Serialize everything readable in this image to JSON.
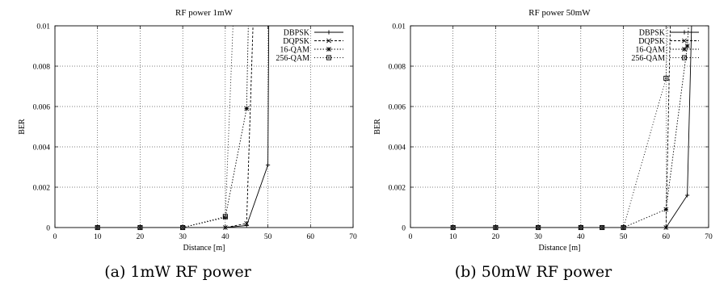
{
  "chart_data": [
    {
      "type": "line",
      "title": "RF power 1mW",
      "xlabel": "Distance [m]",
      "ylabel": "BER",
      "xlim": [
        0,
        70
      ],
      "ylim": [
        0,
        0.01
      ],
      "xticks": [
        "0",
        "10",
        "20",
        "30",
        "40",
        "50",
        "60",
        "70"
      ],
      "yticks": [
        "0",
        "0.002",
        "0.004",
        "0.006",
        "0.008",
        "0.01"
      ],
      "grid": true,
      "legend_position": "top-right",
      "caption": "(a) 1mW RF power",
      "series": [
        {
          "name": "DBPSK",
          "marker": "plus",
          "dash": "",
          "x": [
            10,
            20,
            30,
            40,
            45,
            50,
            50.2
          ],
          "y": [
            0,
            0,
            0,
            0,
            0.0001,
            0.0031,
            0.01
          ]
        },
        {
          "name": "DQPSK",
          "marker": "cross",
          "dash": "3,2",
          "x": [
            10,
            20,
            30,
            40,
            45,
            46.5
          ],
          "y": [
            0,
            0,
            0,
            0,
            0.0002,
            0.01
          ]
        },
        {
          "name": "16-QAM",
          "marker": "star",
          "dash": "1.5,2",
          "x": [
            10,
            20,
            30,
            40,
            45,
            45.4
          ],
          "y": [
            0,
            0,
            0,
            0.0005,
            0.0059,
            0.01
          ]
        },
        {
          "name": "256-QAM",
          "marker": "box",
          "dash": "1,2.5",
          "x": [
            10,
            20,
            30,
            40,
            41.8
          ],
          "y": [
            0,
            0,
            0,
            0.00055,
            0.01
          ]
        }
      ]
    },
    {
      "type": "line",
      "title": "RF power 50mW",
      "xlabel": "Distance [m]",
      "ylabel": "BER",
      "xlim": [
        0,
        70
      ],
      "ylim": [
        0,
        0.01
      ],
      "xticks": [
        "0",
        "10",
        "20",
        "30",
        "40",
        "50",
        "60",
        "70"
      ],
      "yticks": [
        "0",
        "0.002",
        "0.004",
        "0.006",
        "0.008",
        "0.01"
      ],
      "grid": true,
      "legend_position": "top-right",
      "caption": "(b) 50mW RF power",
      "series": [
        {
          "name": "DBPSK",
          "marker": "plus",
          "dash": "",
          "x": [
            10,
            20,
            30,
            40,
            45,
            50,
            60,
            65,
            66
          ],
          "y": [
            0,
            0,
            0,
            0,
            0,
            0,
            0,
            0.0016,
            0.01
          ]
        },
        {
          "name": "DQPSK",
          "marker": "cross",
          "dash": "3,2",
          "x": [
            10,
            20,
            30,
            40,
            45,
            50,
            60,
            61
          ],
          "y": [
            0,
            0,
            0,
            0,
            0,
            0,
            0,
            0.01
          ]
        },
        {
          "name": "16-QAM",
          "marker": "star",
          "dash": "1.5,2",
          "x": [
            10,
            20,
            30,
            40,
            45,
            50,
            60,
            65,
            65.3
          ],
          "y": [
            0,
            0,
            0,
            0,
            0,
            0,
            0.0009,
            0.009,
            0.01
          ]
        },
        {
          "name": "256-QAM",
          "marker": "box",
          "dash": "1,2.5",
          "x": [
            10,
            20,
            30,
            40,
            45,
            50,
            60,
            60.4
          ],
          "y": [
            0,
            0,
            0,
            0,
            0,
            0,
            0.0074,
            0.01
          ]
        }
      ]
    }
  ]
}
